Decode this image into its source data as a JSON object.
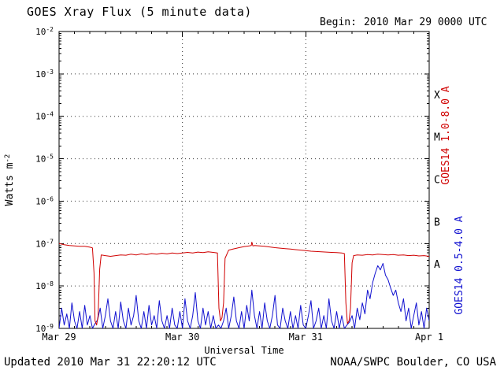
{
  "header": {
    "title": "GOES Xray Flux (5 minute data)",
    "begin_label": "Begin:",
    "begin_value": "2010 Mar 29 0000 UTC"
  },
  "footer": {
    "updated": "Updated 2010 Mar 31 22:20:12 UTC",
    "credit": "NOAA/SWPC Boulder, CO USA"
  },
  "chart_data": {
    "type": "line",
    "title": "GOES Xray Flux (5 minute data)",
    "xlabel": "Universal Time",
    "ylabel": {
      "text": "Watts m",
      "sup": "-2"
    },
    "x_unit_hours_since": "2010 Mar 29 0000 UTC",
    "xlim_hours": [
      0,
      72
    ],
    "ylog_range": [
      -9,
      -2
    ],
    "y_tick_exponents": [
      -2,
      -3,
      -4,
      -5,
      -6,
      -7,
      -8,
      -9
    ],
    "x_ticks": [
      {
        "label": "Mar 29",
        "hour": 0
      },
      {
        "label": "Mar 30",
        "hour": 24
      },
      {
        "label": "Mar 31",
        "hour": 48
      },
      {
        "label": "Apr 1",
        "hour": 72
      }
    ],
    "grid": {
      "h_exponents": [
        -3,
        -4,
        -5,
        -6,
        -7,
        -8
      ],
      "v_hours": [
        24,
        48
      ]
    },
    "flare_classes": [
      {
        "label": "X",
        "log10_center": -3.5
      },
      {
        "label": "M",
        "log10_center": -4.5
      },
      {
        "label": "C",
        "log10_center": -5.5
      },
      {
        "label": "B",
        "log10_center": -6.5
      },
      {
        "label": "A",
        "log10_center": -7.5
      }
    ],
    "colors": {
      "long": "#d00000",
      "short": "#1010d0",
      "axis": "#000000"
    },
    "series": [
      {
        "name": "GOES14 1.0-8.0 A",
        "channel": "long",
        "color": "#d00000",
        "points": [
          [
            0,
            1e-07
          ],
          [
            1,
            9.4e-08
          ],
          [
            2,
            9e-08
          ],
          [
            3,
            8.8e-08
          ],
          [
            4,
            8.6e-08
          ],
          [
            5,
            8.6e-08
          ],
          [
            6,
            8.2e-08
          ],
          [
            6.5,
            7.9e-08
          ],
          [
            6.8,
            2e-08
          ],
          [
            7.0,
            1.5e-09
          ],
          [
            7.3,
            1.2e-09
          ],
          [
            7.6,
            2e-09
          ],
          [
            7.9,
            2.5e-08
          ],
          [
            8.2,
            5.4e-08
          ],
          [
            9,
            5.2e-08
          ],
          [
            10,
            5e-08
          ],
          [
            11,
            5.2e-08
          ],
          [
            12,
            5.4e-08
          ],
          [
            13,
            5.3e-08
          ],
          [
            14,
            5.6e-08
          ],
          [
            15,
            5.4e-08
          ],
          [
            16,
            5.7e-08
          ],
          [
            17,
            5.5e-08
          ],
          [
            18,
            5.8e-08
          ],
          [
            19,
            5.6e-08
          ],
          [
            20,
            5.9e-08
          ],
          [
            21,
            5.7e-08
          ],
          [
            22,
            6e-08
          ],
          [
            23,
            5.8e-08
          ],
          [
            24,
            6e-08
          ],
          [
            25,
            6.2e-08
          ],
          [
            26,
            6e-08
          ],
          [
            27,
            6.3e-08
          ],
          [
            28,
            6.1e-08
          ],
          [
            29,
            6.4e-08
          ],
          [
            30,
            6.2e-08
          ],
          [
            30.8,
            6e-08
          ],
          [
            31.1,
            3e-09
          ],
          [
            31.4,
            1.5e-09
          ],
          [
            31.7,
            1.8e-09
          ],
          [
            32.0,
            4e-09
          ],
          [
            32.3,
            4.5e-08
          ],
          [
            33,
            7e-08
          ],
          [
            34,
            7.5e-08
          ],
          [
            35,
            8e-08
          ],
          [
            36,
            8.5e-08
          ],
          [
            37,
            8.8e-08
          ],
          [
            37.4,
            9e-08
          ],
          [
            37.5,
            1.08e-07
          ],
          [
            37.7,
            8.8e-08
          ],
          [
            38,
            9e-08
          ],
          [
            39,
            8.8e-08
          ],
          [
            40,
            8.6e-08
          ],
          [
            41,
            8.3e-08
          ],
          [
            42,
            8e-08
          ],
          [
            43,
            7.8e-08
          ],
          [
            44,
            7.6e-08
          ],
          [
            45,
            7.4e-08
          ],
          [
            46,
            7.2e-08
          ],
          [
            47,
            7e-08
          ],
          [
            48,
            6.8e-08
          ],
          [
            49,
            6.6e-08
          ],
          [
            50,
            6.5e-08
          ],
          [
            51,
            6.4e-08
          ],
          [
            52,
            6.3e-08
          ],
          [
            53,
            6.2e-08
          ],
          [
            54,
            6.1e-08
          ],
          [
            55,
            6e-08
          ],
          [
            55.5,
            5.8e-08
          ],
          [
            55.8,
            4e-09
          ],
          [
            56.1,
            1.3e-09
          ],
          [
            56.4,
            1.5e-09
          ],
          [
            56.7,
            3e-09
          ],
          [
            57.0,
            3.5e-08
          ],
          [
            57.3,
            5.2e-08
          ],
          [
            58,
            5.4e-08
          ],
          [
            59,
            5.3e-08
          ],
          [
            60,
            5.5e-08
          ],
          [
            61,
            5.4e-08
          ],
          [
            62,
            5.6e-08
          ],
          [
            63,
            5.5e-08
          ],
          [
            64,
            5.4e-08
          ],
          [
            65,
            5.5e-08
          ],
          [
            66,
            5.3e-08
          ],
          [
            67,
            5.4e-08
          ],
          [
            68,
            5.2e-08
          ],
          [
            69,
            5.3e-08
          ],
          [
            70,
            5.1e-08
          ],
          [
            71,
            5.2e-08
          ],
          [
            72,
            5e-08
          ]
        ]
      },
      {
        "name": "GOES14 0.5-4.0 A",
        "channel": "short",
        "color": "#1010d0",
        "points": [
          [
            0,
            1e-09
          ],
          [
            0.5,
            3e-09
          ],
          [
            1,
            1.2e-09
          ],
          [
            1.5,
            2.2e-09
          ],
          [
            2,
            1e-09
          ],
          [
            2.5,
            4e-09
          ],
          [
            3,
            1.5e-09
          ],
          [
            3.5,
            1e-09
          ],
          [
            4,
            2.5e-09
          ],
          [
            4.5,
            1e-09
          ],
          [
            5,
            3.5e-09
          ],
          [
            5.5,
            1.2e-09
          ],
          [
            6,
            2e-09
          ],
          [
            6.5,
            1e-09
          ],
          [
            7,
            1.3e-09
          ],
          [
            7.5,
            1.6e-09
          ],
          [
            8,
            3e-09
          ],
          [
            8.5,
            1e-09
          ],
          [
            9,
            2e-09
          ],
          [
            9.5,
            5e-09
          ],
          [
            10,
            1.5e-09
          ],
          [
            10.5,
            1e-09
          ],
          [
            11,
            2.5e-09
          ],
          [
            11.5,
            1e-09
          ],
          [
            12,
            4.2e-09
          ],
          [
            12.5,
            1.5e-09
          ],
          [
            13,
            1e-09
          ],
          [
            13.5,
            3e-09
          ],
          [
            14,
            1.2e-09
          ],
          [
            14.5,
            2e-09
          ],
          [
            15,
            6e-09
          ],
          [
            15.5,
            1.5e-09
          ],
          [
            16,
            1e-09
          ],
          [
            16.5,
            2.5e-09
          ],
          [
            17,
            1e-09
          ],
          [
            17.5,
            3.5e-09
          ],
          [
            18,
            1.2e-09
          ],
          [
            18.5,
            2e-09
          ],
          [
            19,
            1e-09
          ],
          [
            19.5,
            4.5e-09
          ],
          [
            20,
            1.5e-09
          ],
          [
            20.5,
            1e-09
          ],
          [
            21,
            2e-09
          ],
          [
            21.5,
            1e-09
          ],
          [
            22,
            3e-09
          ],
          [
            22.5,
            1.2e-09
          ],
          [
            23,
            1e-09
          ],
          [
            23.5,
            2.5e-09
          ],
          [
            24,
            1e-09
          ],
          [
            24.5,
            5e-09
          ],
          [
            25,
            1.5e-09
          ],
          [
            25.5,
            1e-09
          ],
          [
            26,
            2e-09
          ],
          [
            26.5,
            7e-09
          ],
          [
            27,
            1.5e-09
          ],
          [
            27.5,
            1e-09
          ],
          [
            28,
            3e-09
          ],
          [
            28.5,
            1.2e-09
          ],
          [
            29,
            2.5e-09
          ],
          [
            29.5,
            1e-09
          ],
          [
            30,
            2e-09
          ],
          [
            30.5,
            1e-09
          ],
          [
            31,
            1.2e-09
          ],
          [
            31.5,
            1e-09
          ],
          [
            32,
            1.5e-09
          ],
          [
            32.5,
            3e-09
          ],
          [
            33,
            1e-09
          ],
          [
            33.5,
            2e-09
          ],
          [
            34,
            5.5e-09
          ],
          [
            34.5,
            1.5e-09
          ],
          [
            35,
            1e-09
          ],
          [
            35.5,
            2.5e-09
          ],
          [
            36,
            1e-09
          ],
          [
            36.5,
            3.5e-09
          ],
          [
            37,
            1.5e-09
          ],
          [
            37.5,
            8e-09
          ],
          [
            38,
            2e-09
          ],
          [
            38.5,
            1e-09
          ],
          [
            39,
            2.5e-09
          ],
          [
            39.5,
            1e-09
          ],
          [
            40,
            4e-09
          ],
          [
            40.5,
            1.5e-09
          ],
          [
            41,
            1e-09
          ],
          [
            41.5,
            2e-09
          ],
          [
            42,
            6e-09
          ],
          [
            42.5,
            1.2e-09
          ],
          [
            43,
            1e-09
          ],
          [
            43.5,
            3e-09
          ],
          [
            44,
            1.5e-09
          ],
          [
            44.5,
            1e-09
          ],
          [
            45,
            2.5e-09
          ],
          [
            45.5,
            1e-09
          ],
          [
            46,
            2e-09
          ],
          [
            46.5,
            1e-09
          ],
          [
            47,
            3.5e-09
          ],
          [
            47.5,
            1.2e-09
          ],
          [
            48,
            1e-09
          ],
          [
            48.5,
            2e-09
          ],
          [
            49,
            4.5e-09
          ],
          [
            49.5,
            1e-09
          ],
          [
            50,
            1.5e-09
          ],
          [
            50.5,
            3e-09
          ],
          [
            51,
            1e-09
          ],
          [
            51.5,
            2e-09
          ],
          [
            52,
            1e-09
          ],
          [
            52.5,
            5e-09
          ],
          [
            53,
            1.5e-09
          ],
          [
            53.5,
            1e-09
          ],
          [
            54,
            2.5e-09
          ],
          [
            54.5,
            1e-09
          ],
          [
            55,
            2e-09
          ],
          [
            55.5,
            1e-09
          ],
          [
            56,
            1.2e-09
          ],
          [
            56.5,
            1.4e-09
          ],
          [
            57,
            2e-09
          ],
          [
            57.5,
            1e-09
          ],
          [
            58,
            3e-09
          ],
          [
            58.5,
            1.6e-09
          ],
          [
            59,
            4e-09
          ],
          [
            59.5,
            2.2e-09
          ],
          [
            60,
            8e-09
          ],
          [
            60.5,
            5e-09
          ],
          [
            61,
            1.2e-08
          ],
          [
            61.5,
            2e-08
          ],
          [
            62,
            3e-08
          ],
          [
            62.5,
            2.4e-08
          ],
          [
            63,
            3.4e-08
          ],
          [
            63.5,
            1.8e-08
          ],
          [
            64,
            1.4e-08
          ],
          [
            64.5,
            9e-09
          ],
          [
            65,
            6e-09
          ],
          [
            65.5,
            8e-09
          ],
          [
            66,
            4e-09
          ],
          [
            66.5,
            2.5e-09
          ],
          [
            67,
            5e-09
          ],
          [
            67.5,
            1.5e-09
          ],
          [
            68,
            3e-09
          ],
          [
            68.5,
            1e-09
          ],
          [
            69,
            2e-09
          ],
          [
            69.5,
            4e-09
          ],
          [
            70,
            1.2e-09
          ],
          [
            70.5,
            2.5e-09
          ],
          [
            71,
            1e-09
          ],
          [
            71.5,
            3e-09
          ],
          [
            72,
            1.5e-09
          ]
        ]
      }
    ]
  }
}
